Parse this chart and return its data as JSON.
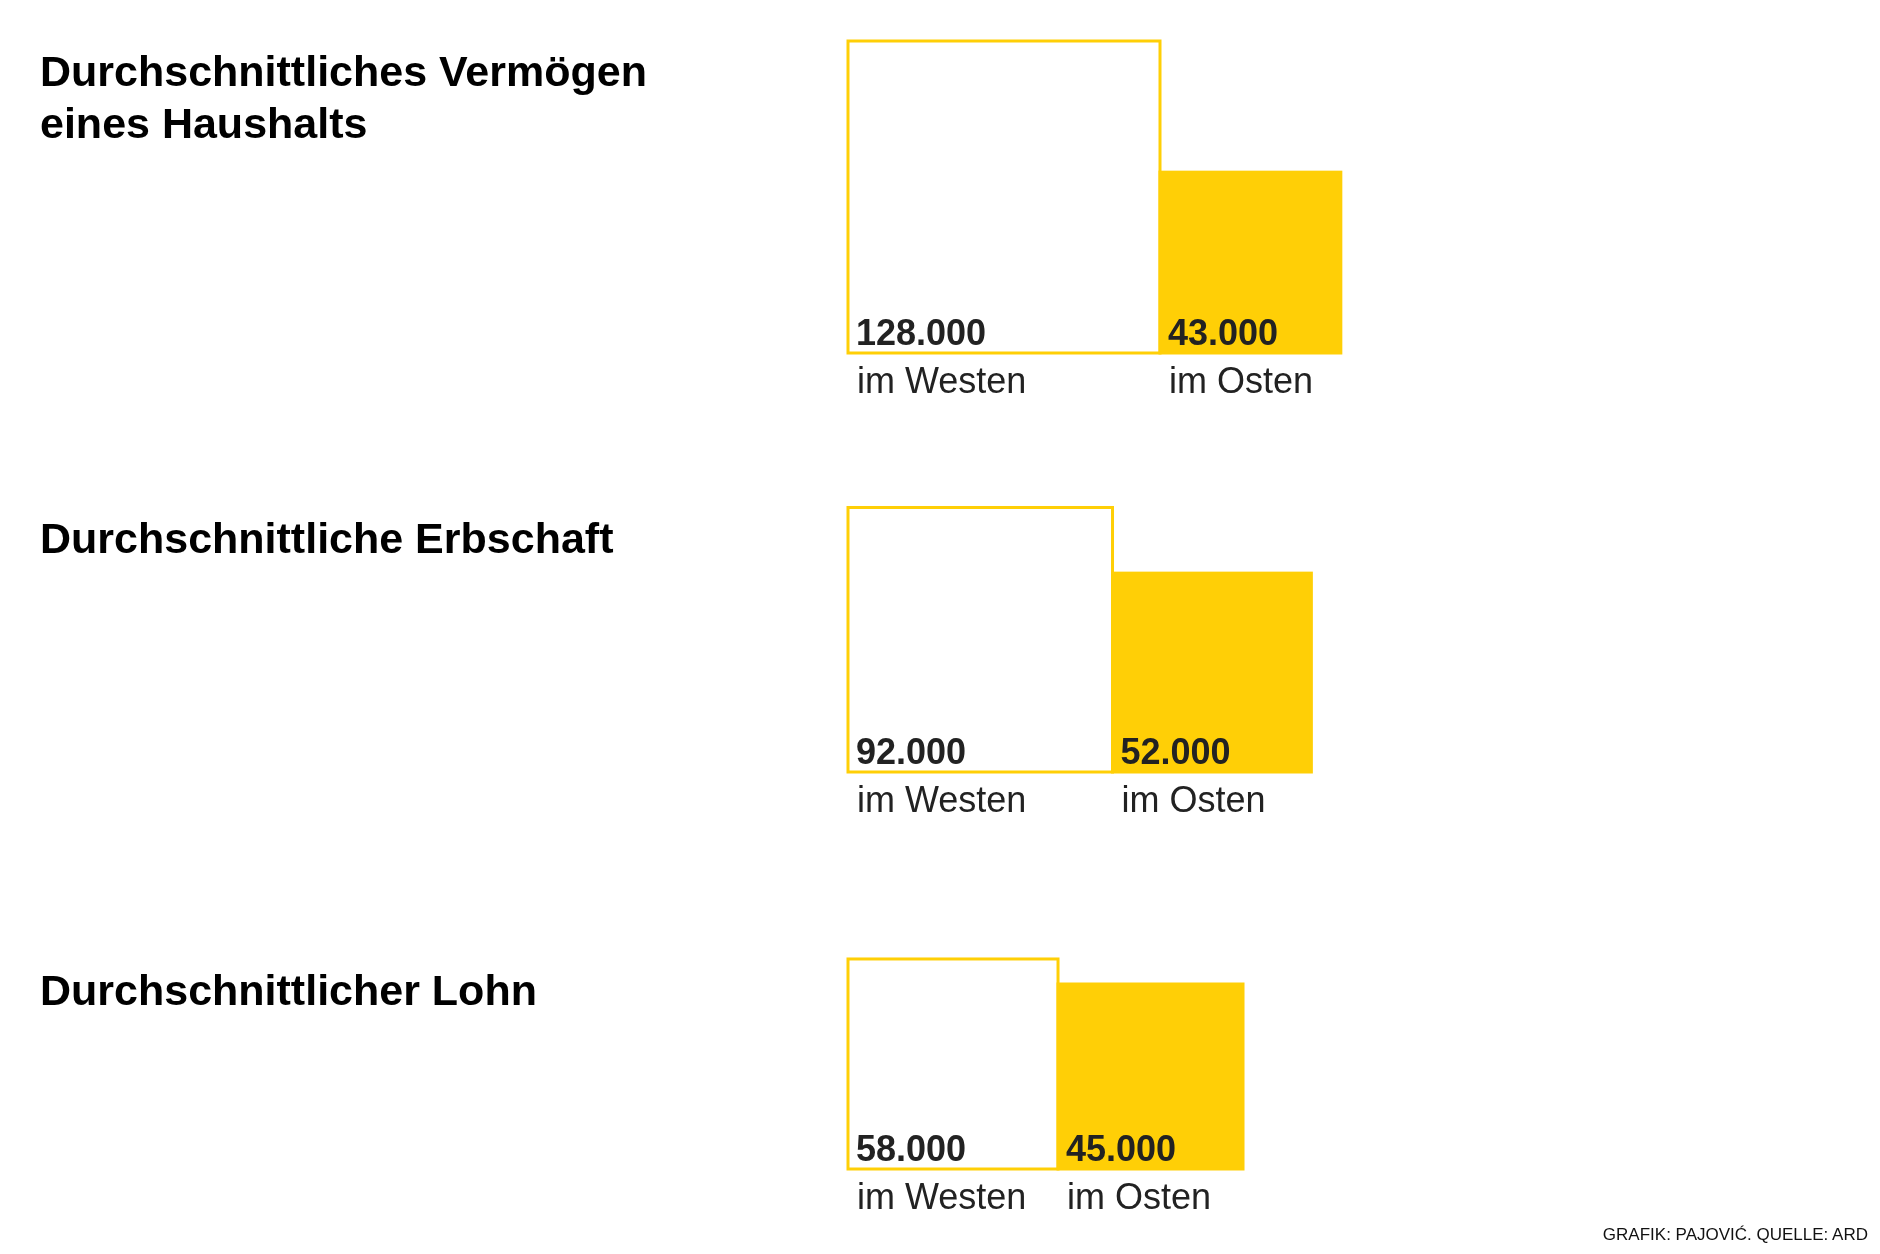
{
  "chart_data": [
    {
      "type": "other",
      "title": "Durchschnittliches Vermögen eines Haushalts",
      "categories": [
        "im Westen",
        "im Osten"
      ],
      "values": [
        128000,
        43000
      ],
      "value_labels": [
        "128.000",
        "43.000"
      ],
      "colors": [
        "#ffffff",
        "#ffcf06"
      ]
    },
    {
      "type": "other",
      "title": "Durchschnittliche Erbschaft",
      "categories": [
        "im Westen",
        "im Osten"
      ],
      "values": [
        92000,
        52000
      ],
      "value_labels": [
        "92.000",
        "52.000"
      ],
      "colors": [
        "#ffffff",
        "#ffcf06"
      ]
    },
    {
      "type": "other",
      "title": "Durchschnittlicher Lohn",
      "categories": [
        "im Westen",
        "im Osten"
      ],
      "values": [
        58000,
        45000
      ],
      "value_labels": [
        "58.000",
        "45.000"
      ],
      "colors": [
        "#ffffff",
        "#ffcf06"
      ],
      "annotations": [
        "GRAFIK: PAJOVIĆ. QUELLE: ARD"
      ]
    }
  ]
}
